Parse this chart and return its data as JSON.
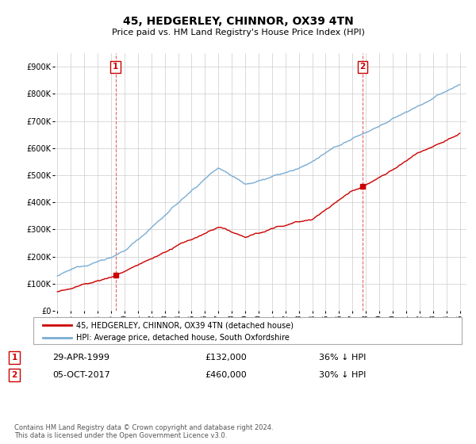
{
  "title": "45, HEDGERLEY, CHINNOR, OX39 4TN",
  "subtitle": "Price paid vs. HM Land Registry's House Price Index (HPI)",
  "ylim": [
    0,
    950000
  ],
  "yticks": [
    0,
    100000,
    200000,
    300000,
    400000,
    500000,
    600000,
    700000,
    800000,
    900000
  ],
  "ytick_labels": [
    "£0",
    "£100K",
    "£200K",
    "£300K",
    "£400K",
    "£500K",
    "£600K",
    "£700K",
    "£800K",
    "£900K"
  ],
  "xlim_min": 1994.8,
  "xlim_max": 2025.5,
  "sale1_x": 1999.33,
  "sale1_y": 132000,
  "sale2_x": 2017.75,
  "sale2_y": 460000,
  "sale1_date": "29-APR-1999",
  "sale1_price": "£132,000",
  "sale1_hpi": "36% ↓ HPI",
  "sale2_date": "05-OCT-2017",
  "sale2_price": "£460,000",
  "sale2_hpi": "30% ↓ HPI",
  "legend_label_red": "45, HEDGERLEY, CHINNOR, OX39 4TN (detached house)",
  "legend_label_blue": "HPI: Average price, detached house, South Oxfordshire",
  "footer": "Contains HM Land Registry data © Crown copyright and database right 2024.\nThis data is licensed under the Open Government Licence v3.0.",
  "red_color": "#cc0000",
  "blue_color": "#7aadd4",
  "background_color": "#ffffff",
  "grid_color": "#cccccc"
}
